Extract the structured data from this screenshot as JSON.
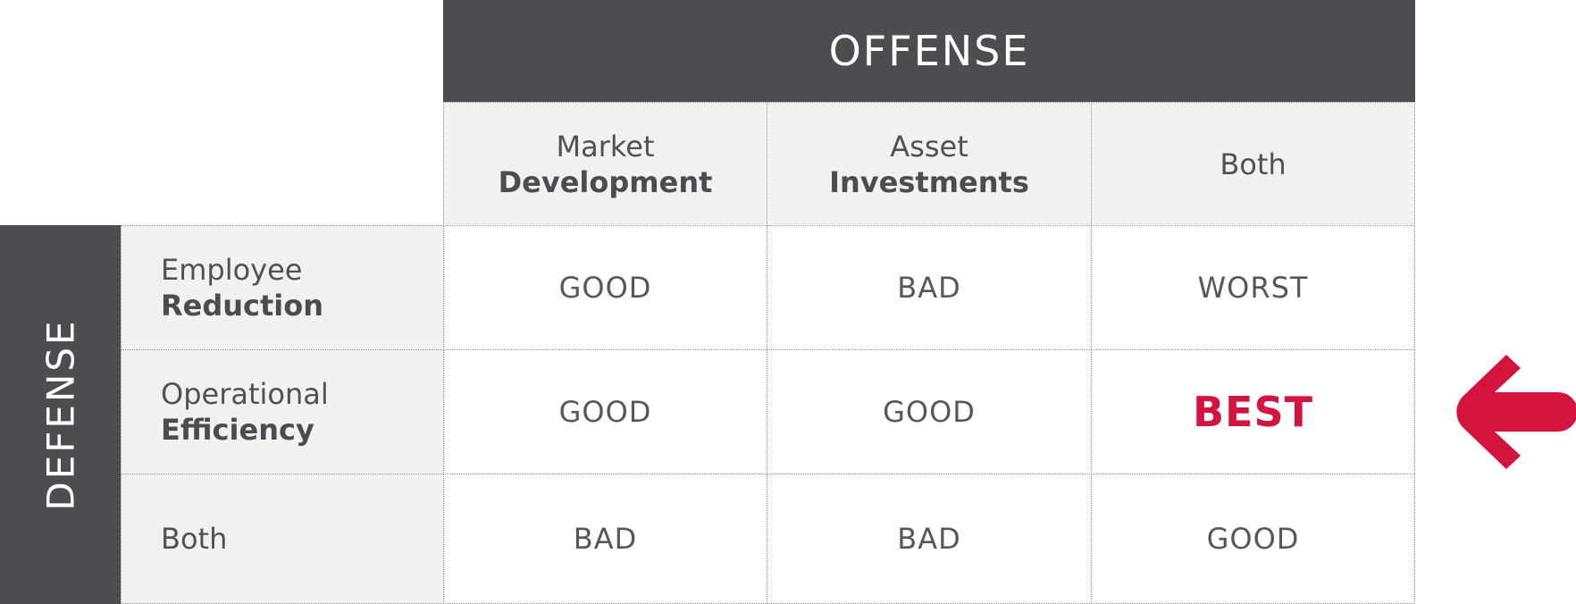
{
  "offense_label": "OFFENSE",
  "defense_label": "DEFENSE",
  "columns": [
    {
      "line1": "Market",
      "line2": "Development"
    },
    {
      "line1": "Asset",
      "line2": "Investments"
    },
    {
      "line1": "Both",
      "line2": ""
    }
  ],
  "rows": [
    {
      "line1": "Employee",
      "line2": "Reduction",
      "values": [
        "GOOD",
        "BAD",
        "WORST"
      ]
    },
    {
      "line1": "Operational",
      "line2": "Efficiency",
      "values": [
        "GOOD",
        "GOOD",
        "BEST"
      ]
    },
    {
      "line1": "Both",
      "line2": "",
      "values": [
        "BAD",
        "BAD",
        "GOOD"
      ]
    }
  ],
  "colors": {
    "header_bg": "#4b4d51",
    "label_bg": "#f1f1f1",
    "highlight": "#d4133f"
  },
  "icons": {
    "pointer": "left-arrow-icon"
  }
}
